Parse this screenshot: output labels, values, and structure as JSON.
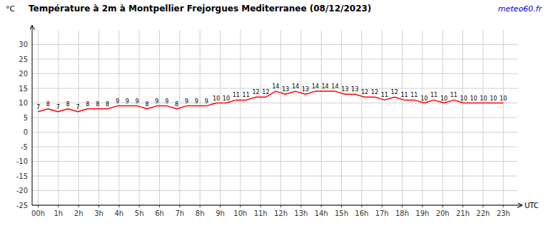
{
  "chart_data": {
    "type": "line",
    "title": "Température à 2m à Montpellier Frejorgues Mediterranee (08/12/2023)",
    "ylabel": "°C",
    "xlabel": "UTC",
    "annotations": [
      "meteo60.fr"
    ],
    "x": [
      0,
      0.489362,
      0.978723,
      1.468085,
      1.957447,
      2.446809,
      2.93617,
      3.425532,
      3.914894,
      4.404255,
      4.893617,
      5.382979,
      5.87234,
      6.361702,
      6.851064,
      7.340426,
      7.829787,
      8.319149,
      8.808511,
      9.297872,
      9.787234,
      10.276596,
      10.765957,
      11.255319,
      11.744681,
      12.234043,
      12.723404,
      13.212766,
      13.702128,
      14.191489,
      14.680851,
      15.170213,
      15.659574,
      16.148936,
      16.638298,
      17.12766,
      17.617021,
      18.106383,
      18.595745,
      19.085106,
      19.574468,
      20.06383,
      20.553191,
      21.042553,
      21.531915,
      22.021277,
      22.510638,
      23
    ],
    "values": [
      7,
      8,
      7,
      8,
      7,
      8,
      8,
      8,
      9,
      9,
      9,
      8,
      9,
      9,
      8,
      9,
      9,
      9,
      10,
      10,
      11,
      11,
      12,
      12,
      14,
      13,
      14,
      13,
      14,
      14,
      14,
      13,
      13,
      12,
      12,
      11,
      12,
      11,
      11,
      10,
      11,
      10,
      11,
      10,
      10,
      10,
      10,
      10
    ],
    "color": "#ff0000",
    "data_labels": true,
    "grid": true,
    "xlim": [
      -0.3,
      23.7
    ],
    "xticks": [
      {
        "value": 0,
        "label": "00h"
      },
      {
        "value": 1,
        "label": "1h"
      },
      {
        "value": 2,
        "label": "2h"
      },
      {
        "value": 3,
        "label": "3h"
      },
      {
        "value": 4,
        "label": "4h"
      },
      {
        "value": 5,
        "label": "5h"
      },
      {
        "value": 6,
        "label": "6h"
      },
      {
        "value": 7,
        "label": "7h"
      },
      {
        "value": 8,
        "label": "8h"
      },
      {
        "value": 9,
        "label": "9h"
      },
      {
        "value": 10,
        "label": "10h"
      },
      {
        "value": 11,
        "label": "11h"
      },
      {
        "value": 12,
        "label": "12h"
      },
      {
        "value": 13,
        "label": "13h"
      },
      {
        "value": 14,
        "label": "14h"
      },
      {
        "value": 15,
        "label": "15h"
      },
      {
        "value": 16,
        "label": "16h"
      },
      {
        "value": 17,
        "label": "17h"
      },
      {
        "value": 18,
        "label": "18h"
      },
      {
        "value": 19,
        "label": "19h"
      },
      {
        "value": 20,
        "label": "20h"
      },
      {
        "value": 21,
        "label": "21h"
      },
      {
        "value": 22,
        "label": "22h"
      },
      {
        "value": 23,
        "label": "23h"
      }
    ],
    "ylim": [
      -25,
      35
    ],
    "yticks": [
      -25,
      -20,
      -15,
      -10,
      -5,
      0,
      5,
      10,
      15,
      20,
      25,
      30
    ]
  }
}
